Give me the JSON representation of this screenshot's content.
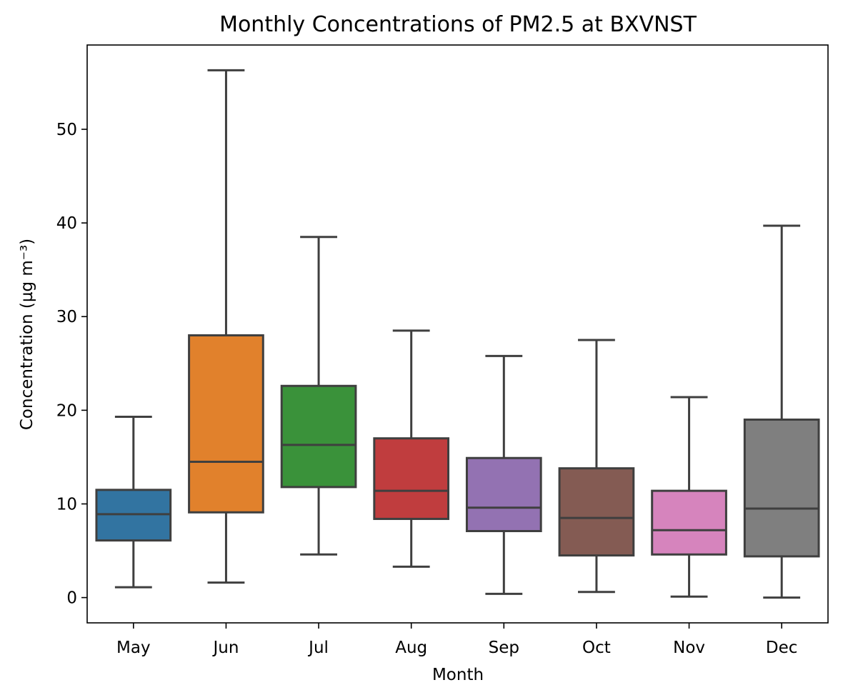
{
  "chart_data": {
    "type": "box",
    "title": "Monthly Concentrations of PM2.5 at BXVNST",
    "xlabel": "Month",
    "ylabel": "Concentration (µg m⁻³)",
    "ylim": [
      -2.7,
      59
    ],
    "yticks": [
      0,
      10,
      20,
      30,
      40,
      50
    ],
    "grid": false,
    "legend": "none",
    "categories": [
      "May",
      "Jun",
      "Jul",
      "Aug",
      "Sep",
      "Oct",
      "Nov",
      "Dec"
    ],
    "boxes": [
      {
        "month": "May",
        "whisker_low": 1.1,
        "q1": 6.1,
        "median": 8.9,
        "q3": 11.5,
        "whisker_high": 19.3,
        "color": "#3274a1"
      },
      {
        "month": "Jun",
        "whisker_low": 1.6,
        "q1": 9.1,
        "median": 14.5,
        "q3": 28.0,
        "whisker_high": 56.3,
        "color": "#e1812c"
      },
      {
        "month": "Jul",
        "whisker_low": 4.6,
        "q1": 11.8,
        "median": 16.3,
        "q3": 22.6,
        "whisker_high": 38.5,
        "color": "#3a923a"
      },
      {
        "month": "Aug",
        "whisker_low": 3.3,
        "q1": 8.4,
        "median": 11.4,
        "q3": 17.0,
        "whisker_high": 28.5,
        "color": "#c03d3e"
      },
      {
        "month": "Sep",
        "whisker_low": 0.4,
        "q1": 7.1,
        "median": 9.6,
        "q3": 14.9,
        "whisker_high": 25.8,
        "color": "#9372b2"
      },
      {
        "month": "Oct",
        "whisker_low": 0.6,
        "q1": 4.5,
        "median": 8.5,
        "q3": 13.8,
        "whisker_high": 27.5,
        "color": "#845b53"
      },
      {
        "month": "Nov",
        "whisker_low": 0.1,
        "q1": 4.6,
        "median": 7.2,
        "q3": 11.4,
        "whisker_high": 21.4,
        "color": "#d684bd"
      },
      {
        "month": "Dec",
        "whisker_low": 0.0,
        "q1": 4.4,
        "median": 9.5,
        "q3": 19.0,
        "whisker_high": 39.7,
        "color": "#7f7f7f"
      }
    ]
  }
}
